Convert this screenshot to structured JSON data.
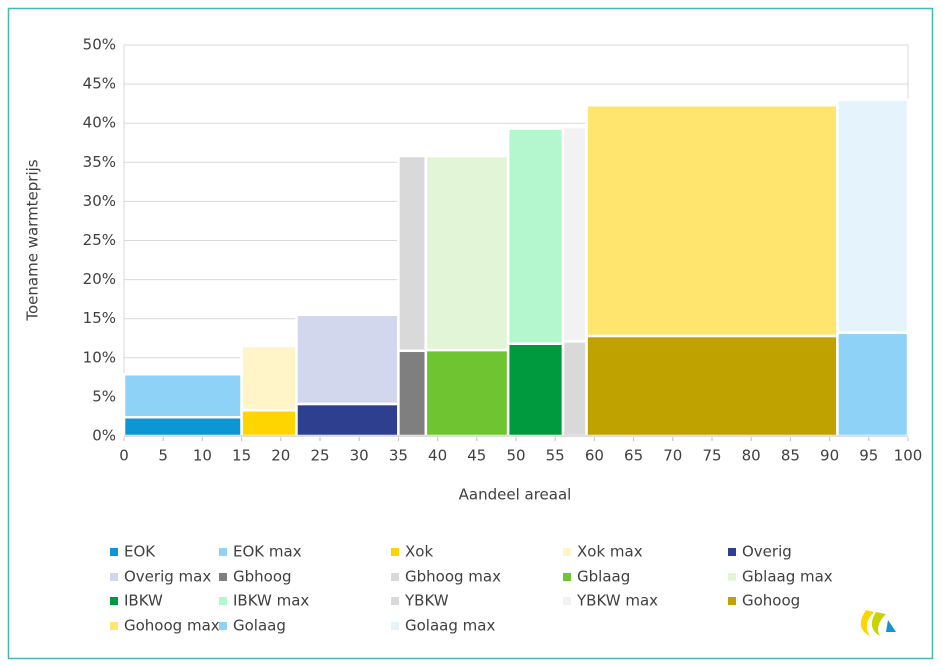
{
  "chart_data": {
    "type": "variable-width-stacked-bar",
    "x_label": "Aandeel areaal",
    "y_label": "Toename warmteprijs",
    "xlim": [
      0,
      100
    ],
    "xticks": [
      0,
      5,
      10,
      15,
      20,
      25,
      30,
      35,
      40,
      45,
      50,
      55,
      60,
      65,
      70,
      75,
      80,
      85,
      90,
      95,
      100
    ],
    "ylim": [
      0,
      50
    ],
    "yticks": [
      {
        "value": 0,
        "label": "0%"
      },
      {
        "value": 5,
        "label": "5%"
      },
      {
        "value": 10,
        "label": "10%"
      },
      {
        "value": 15,
        "label": "15%"
      },
      {
        "value": 20,
        "label": "20%"
      },
      {
        "value": 25,
        "label": "25%"
      },
      {
        "value": 30,
        "label": "30%"
      },
      {
        "value": 35,
        "label": "35%"
      },
      {
        "value": 40,
        "label": "40%"
      },
      {
        "value": 45,
        "label": "45%"
      },
      {
        "value": 50,
        "label": "50%"
      }
    ],
    "grid": true,
    "legend": "bottom",
    "bars": [
      {
        "x": [
          0,
          15
        ],
        "segments": [
          {
            "name": "EOK",
            "color": "#0d96d4",
            "value": 2.4
          },
          {
            "name": "EOK max",
            "color": "#8ed2f7",
            "value": 5.5
          }
        ]
      },
      {
        "x": [
          15,
          22
        ],
        "segments": [
          {
            "name": "Xok",
            "color": "#ffd500",
            "value": 3.3
          },
          {
            "name": "Xok max",
            "color": "#fff5c9",
            "value": 8.2
          }
        ]
      },
      {
        "x": [
          22,
          35
        ],
        "segments": [
          {
            "name": "Overig",
            "color": "#2e3f8f",
            "value": 4.1
          },
          {
            "name": "Overig max",
            "color": "#d3d7ee",
            "value": 11.4
          }
        ]
      },
      {
        "x": [
          35,
          38.5
        ],
        "segments": [
          {
            "name": "Gbhoog",
            "color": "#7f7f7f",
            "value": 10.9
          },
          {
            "name": "Gbhoog max",
            "color": "#d9d9d9",
            "value": 24.9
          }
        ]
      },
      {
        "x": [
          38.5,
          49
        ],
        "segments": [
          {
            "name": "Gblaag",
            "color": "#6ec531",
            "value": 11.0
          },
          {
            "name": "Gblaag max",
            "color": "#e2f5d6",
            "value": 24.8
          }
        ]
      },
      {
        "x": [
          49,
          56
        ],
        "segments": [
          {
            "name": "IBKW",
            "color": "#009a3e",
            "value": 11.8
          },
          {
            "name": "IBKW max",
            "color": "#b4f7cf",
            "value": 27.5
          }
        ]
      },
      {
        "x": [
          56,
          59
        ],
        "segments": [
          {
            "name": "YBKW",
            "color": "#d9d9d9",
            "value": 12.1
          },
          {
            "name": "YBKW max",
            "color": "#f2f2f2",
            "value": 27.4
          }
        ]
      },
      {
        "x": [
          59,
          91
        ],
        "segments": [
          {
            "name": "Gohoog",
            "color": "#bfa100",
            "value": 12.8
          },
          {
            "name": "Gohoog max",
            "color": "#ffe56d",
            "value": 29.5
          }
        ]
      },
      {
        "x": [
          91,
          100
        ],
        "segments": [
          {
            "name": "Golaag",
            "color": "#8ed2f7",
            "value": 13.2
          },
          {
            "name": "Golaag max",
            "color": "#e5f4fc",
            "value": 29.8
          }
        ]
      }
    ]
  }
}
